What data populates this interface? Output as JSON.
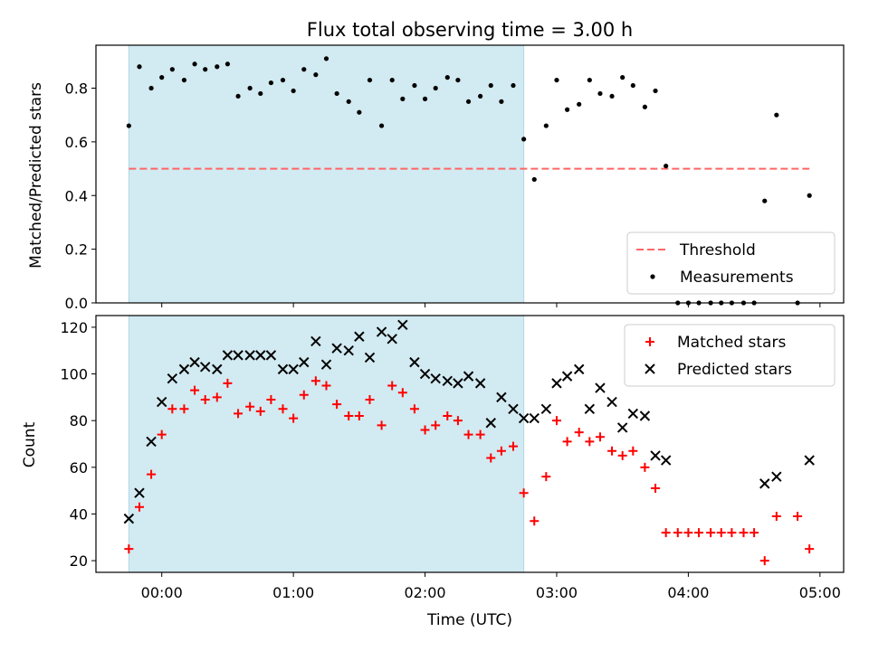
{
  "chart_data": {
    "title": "Flux total observing time = 3.00 h",
    "xlabel": "Time (UTC)",
    "x_unit": "hours UTC",
    "x_ticks": [
      {
        "value": 0,
        "label": "00:00"
      },
      {
        "value": 1,
        "label": "01:00"
      },
      {
        "value": 2,
        "label": "02:00"
      },
      {
        "value": 3,
        "label": "03:00"
      },
      {
        "value": 4,
        "label": "04:00"
      },
      {
        "value": 5,
        "label": "05:00"
      }
    ],
    "xlim": [
      -0.5,
      5.18
    ],
    "shaded_span": {
      "x": [
        -0.25,
        2.75
      ],
      "color": "#add8e6"
    },
    "panels": [
      {
        "type": "scatter",
        "ylabel": "Matched/Predicted stars",
        "ylim": [
          0,
          0.96
        ],
        "y_ticks": [
          "0.0",
          "0.2",
          "0.4",
          "0.6",
          "0.8"
        ],
        "y_tick_values": [
          0,
          0.2,
          0.4,
          0.6,
          0.8
        ],
        "legend_position": "lower right",
        "threshold": {
          "name": "Threshold",
          "y": 0.5,
          "x": [
            -0.25,
            4.92
          ],
          "color": "#ff6666",
          "style": "dashed"
        },
        "series": [
          {
            "name": "Measurements",
            "marker": "dot",
            "color": "#000000",
            "x": [
              -0.25,
              -0.17,
              -0.08,
              0.0,
              0.08,
              0.17,
              0.25,
              0.33,
              0.42,
              0.5,
              0.58,
              0.67,
              0.75,
              0.83,
              0.92,
              1.0,
              1.08,
              1.17,
              1.25,
              1.33,
              1.42,
              1.5,
              1.58,
              1.67,
              1.75,
              1.83,
              1.92,
              2.0,
              2.08,
              2.17,
              2.25,
              2.33,
              2.42,
              2.5,
              2.58,
              2.67,
              2.75,
              2.83,
              2.92,
              3.0,
              3.08,
              3.17,
              3.25,
              3.33,
              3.42,
              3.5,
              3.58,
              3.67,
              3.75,
              3.83,
              3.92,
              4.0,
              4.08,
              4.17,
              4.25,
              4.33,
              4.42,
              4.5,
              4.58,
              4.67,
              4.83,
              4.92
            ],
            "y": [
              0.66,
              0.88,
              0.8,
              0.84,
              0.87,
              0.83,
              0.89,
              0.87,
              0.88,
              0.89,
              0.77,
              0.8,
              0.78,
              0.82,
              0.83,
              0.79,
              0.87,
              0.85,
              0.91,
              0.78,
              0.75,
              0.71,
              0.83,
              0.66,
              0.83,
              0.76,
              0.81,
              0.76,
              0.8,
              0.84,
              0.83,
              0.75,
              0.77,
              0.81,
              0.75,
              0.81,
              0.61,
              0.46,
              0.66,
              0.83,
              0.72,
              0.74,
              0.83,
              0.78,
              0.77,
              0.84,
              0.81,
              0.73,
              0.79,
              0.51,
              0.0,
              0.0,
              0.0,
              0.0,
              0.0,
              0.0,
              0.0,
              0.0,
              0.38,
              0.7,
              0.0,
              0.4
            ]
          }
        ]
      },
      {
        "type": "scatter",
        "ylabel": "Count",
        "ylim": [
          15,
          125
        ],
        "y_ticks": [
          "20",
          "40",
          "60",
          "80",
          "100",
          "120"
        ],
        "y_tick_values": [
          20,
          40,
          60,
          80,
          100,
          120
        ],
        "legend_position": "upper right",
        "series": [
          {
            "name": "Matched stars",
            "marker": "plus",
            "color": "#ff0000",
            "x": [
              -0.25,
              -0.17,
              -0.08,
              0.0,
              0.08,
              0.17,
              0.25,
              0.33,
              0.42,
              0.5,
              0.58,
              0.67,
              0.75,
              0.83,
              0.92,
              1.0,
              1.08,
              1.17,
              1.25,
              1.33,
              1.42,
              1.5,
              1.58,
              1.67,
              1.75,
              1.83,
              1.92,
              2.0,
              2.08,
              2.17,
              2.25,
              2.33,
              2.42,
              2.5,
              2.58,
              2.67,
              2.75,
              2.83,
              2.92,
              3.0,
              3.08,
              3.17,
              3.25,
              3.33,
              3.42,
              3.5,
              3.58,
              3.67,
              3.75,
              3.83,
              3.92,
              4.0,
              4.08,
              4.17,
              4.25,
              4.33,
              4.42,
              4.5,
              4.58,
              4.67,
              4.83,
              4.92
            ],
            "y": [
              25,
              43,
              57,
              74,
              85,
              85,
              93,
              89,
              90,
              96,
              83,
              86,
              84,
              89,
              85,
              81,
              91,
              97,
              95,
              87,
              82,
              82,
              89,
              78,
              95,
              92,
              85,
              76,
              78,
              82,
              80,
              74,
              74,
              64,
              67,
              69,
              49,
              37,
              56,
              80,
              71,
              75,
              71,
              73,
              67,
              65,
              67,
              60,
              51,
              32,
              32,
              32,
              32,
              32,
              32,
              32,
              32,
              32,
              20,
              39,
              39,
              25
            ]
          },
          {
            "name": "Predicted stars",
            "marker": "x",
            "color": "#000000",
            "x": [
              -0.25,
              -0.17,
              -0.08,
              0.0,
              0.08,
              0.17,
              0.25,
              0.33,
              0.42,
              0.5,
              0.58,
              0.67,
              0.75,
              0.83,
              0.92,
              1.0,
              1.08,
              1.17,
              1.25,
              1.33,
              1.42,
              1.5,
              1.58,
              1.67,
              1.75,
              1.83,
              1.92,
              2.0,
              2.08,
              2.17,
              2.25,
              2.33,
              2.42,
              2.5,
              2.58,
              2.67,
              2.75,
              2.83,
              2.92,
              3.0,
              3.08,
              3.17,
              3.25,
              3.33,
              3.42,
              3.5,
              3.58,
              3.67,
              3.75,
              3.83,
              4.58,
              4.67,
              4.92
            ],
            "y": [
              38,
              49,
              71,
              88,
              98,
              102,
              105,
              103,
              102,
              108,
              108,
              108,
              108,
              108,
              102,
              102,
              105,
              114,
              104,
              111,
              110,
              116,
              107,
              118,
              115,
              121,
              105,
              100,
              98,
              97,
              96,
              99,
              96,
              79,
              90,
              85,
              81,
              81,
              85,
              96,
              99,
              102,
              85,
              94,
              88,
              77,
              83,
              82,
              65,
              63,
              53,
              56,
              63
            ]
          }
        ]
      }
    ]
  }
}
